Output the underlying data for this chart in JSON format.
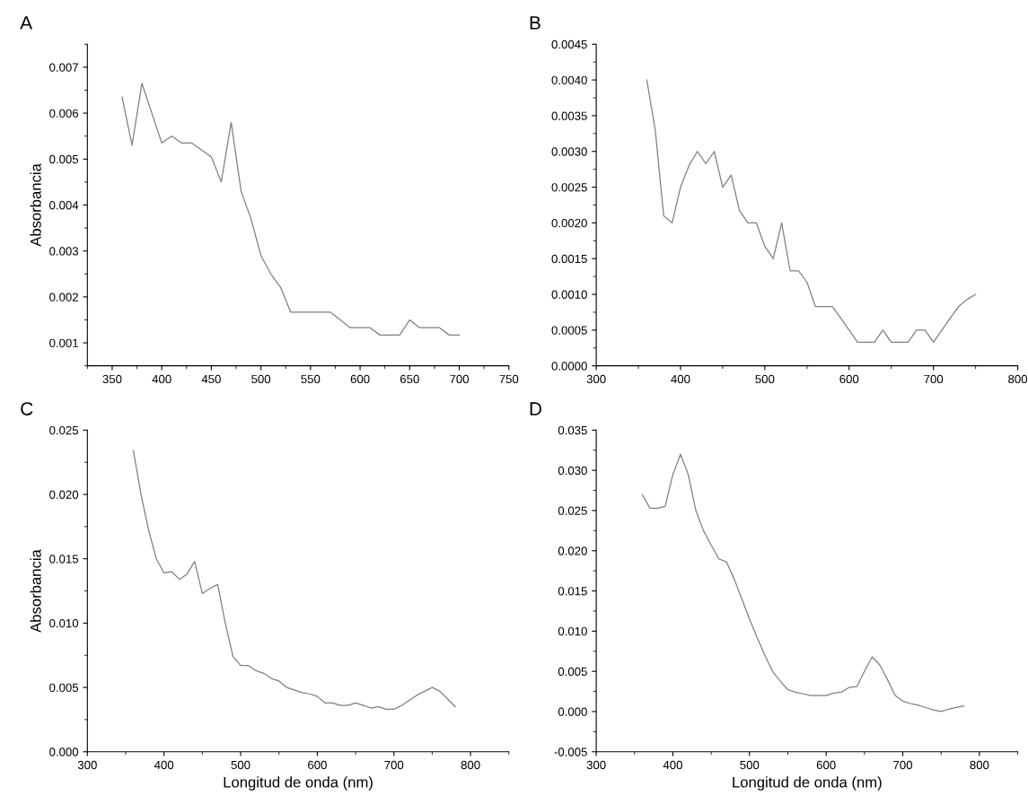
{
  "chart_data": [
    {
      "type": "line",
      "title": "A",
      "ylabel": "Absorbancia",
      "color": "#7f7f7f",
      "line_style": "solid",
      "marker": "none",
      "grid": false,
      "legend": false,
      "x": [
        360,
        370,
        380,
        390,
        400,
        410,
        420,
        430,
        440,
        450,
        460,
        470,
        480,
        490,
        500,
        510,
        520,
        530,
        540,
        550,
        560,
        570,
        580,
        590,
        600,
        610,
        620,
        630,
        640,
        650,
        660,
        670,
        680,
        690,
        700
      ],
      "values": [
        0.00635,
        0.0053,
        0.00665,
        0.006,
        0.00535,
        0.0055,
        0.00535,
        0.00535,
        0.0052,
        0.00505,
        0.0045,
        0.0058,
        0.0043,
        0.0037,
        0.0029,
        0.0025,
        0.0022,
        0.00167,
        0.00167,
        0.00167,
        0.00167,
        0.00167,
        0.0015,
        0.00133,
        0.00133,
        0.00133,
        0.00117,
        0.00117,
        0.00117,
        0.0015,
        0.00133,
        0.00133,
        0.00133,
        0.00117,
        0.00117
      ],
      "xlim": [
        325,
        750
      ],
      "xticks": [
        350,
        400,
        450,
        500,
        550,
        600,
        650,
        700,
        750
      ],
      "ylim": [
        0.0005,
        0.0075
      ],
      "yticks": [
        0.001,
        0.002,
        0.003,
        0.004,
        0.005,
        0.006,
        0.007
      ]
    },
    {
      "type": "line",
      "title": "B",
      "color": "#7f7f7f",
      "line_style": "solid",
      "marker": "none",
      "grid": false,
      "legend": false,
      "x": [
        360,
        370,
        380,
        390,
        400,
        410,
        420,
        430,
        440,
        450,
        460,
        470,
        480,
        490,
        500,
        510,
        520,
        530,
        540,
        550,
        560,
        570,
        580,
        590,
        600,
        610,
        620,
        630,
        640,
        650,
        660,
        670,
        680,
        690,
        700,
        710,
        720,
        730,
        740,
        750
      ],
      "values": [
        0.004,
        0.0033,
        0.0021,
        0.002,
        0.0025,
        0.0028,
        0.003,
        0.00283,
        0.003,
        0.0025,
        0.00267,
        0.00217,
        0.002,
        0.002,
        0.00167,
        0.0015,
        0.002,
        0.00133,
        0.00133,
        0.00117,
        0.00083,
        0.00083,
        0.00083,
        0.00067,
        0.0005,
        0.00033,
        0.00033,
        0.00033,
        0.0005,
        0.00033,
        0.00033,
        0.00033,
        0.0005,
        0.0005,
        0.00033,
        0.0005,
        0.00067,
        0.00083,
        0.00093,
        0.001
      ],
      "xlim": [
        300,
        800
      ],
      "xticks": [
        300,
        400,
        500,
        600,
        700,
        800
      ],
      "ylim": [
        0.0,
        0.0045
      ],
      "yticks": [
        {
          "value": 0.0,
          "label": "0.0000"
        },
        {
          "value": 0.0005,
          "label": "0.0005"
        },
        {
          "value": 0.001,
          "label": "0.0010"
        },
        {
          "value": 0.0015,
          "label": "0.0015"
        },
        {
          "value": 0.002,
          "label": "0.0020"
        },
        {
          "value": 0.0025,
          "label": "0.0025"
        },
        {
          "value": 0.003,
          "label": "0.0030"
        },
        {
          "value": 0.0035,
          "label": "0.0035"
        },
        {
          "value": 0.004,
          "label": "0.0040"
        },
        {
          "value": 0.0045,
          "label": "0.0045"
        }
      ]
    },
    {
      "type": "line",
      "title": "C",
      "xlabel": "Longitud de onda (nm)",
      "ylabel": "Absorbancia",
      "color": "#7f7f7f",
      "line_style": "solid",
      "marker": "none",
      "grid": false,
      "legend": false,
      "x": [
        360,
        370,
        380,
        390,
        400,
        410,
        420,
        430,
        440,
        450,
        460,
        470,
        480,
        490,
        500,
        510,
        520,
        530,
        540,
        550,
        560,
        570,
        580,
        590,
        600,
        610,
        620,
        630,
        640,
        650,
        660,
        670,
        680,
        690,
        700,
        710,
        720,
        730,
        740,
        750,
        760,
        770,
        780
      ],
      "values": [
        0.0234,
        0.02,
        0.0172,
        0.015,
        0.0139,
        0.014,
        0.0134,
        0.0138,
        0.0148,
        0.0123,
        0.0127,
        0.013,
        0.01,
        0.0074,
        0.0067,
        0.0067,
        0.0063,
        0.0061,
        0.0057,
        0.0055,
        0.005,
        0.0048,
        0.0046,
        0.0045,
        0.0043,
        0.0038,
        0.0038,
        0.0036,
        0.0036,
        0.0038,
        0.0036,
        0.0034,
        0.0035,
        0.0033,
        0.0033,
        0.0036,
        0.004,
        0.0044,
        0.0047,
        0.005,
        0.0047,
        0.0041,
        0.0035
      ],
      "xlim": [
        300,
        850
      ],
      "xticks": [
        300,
        400,
        500,
        600,
        700,
        800
      ],
      "ylim": [
        0.0,
        0.025
      ],
      "yticks": [
        {
          "value": 0.0,
          "label": "0.000"
        },
        {
          "value": 0.005,
          "label": "0.005"
        },
        {
          "value": 0.01,
          "label": "0.010"
        },
        {
          "value": 0.015,
          "label": "0.015"
        },
        {
          "value": 0.02,
          "label": "0.020"
        },
        {
          "value": 0.025,
          "label": "0.025"
        }
      ]
    },
    {
      "type": "line",
      "title": "D",
      "xlabel": "Longitud de onda (nm)",
      "color": "#7f7f7f",
      "line_style": "solid",
      "marker": "none",
      "grid": false,
      "legend": false,
      "x": [
        360,
        370,
        380,
        390,
        400,
        410,
        420,
        430,
        440,
        450,
        460,
        470,
        480,
        490,
        500,
        510,
        520,
        530,
        540,
        550,
        560,
        570,
        580,
        590,
        600,
        610,
        620,
        630,
        640,
        650,
        660,
        670,
        680,
        690,
        700,
        710,
        720,
        730,
        740,
        750,
        760,
        770,
        780
      ],
      "values": [
        0.027,
        0.0253,
        0.0253,
        0.0255,
        0.0295,
        0.032,
        0.0295,
        0.025,
        0.0225,
        0.0207,
        0.019,
        0.0186,
        0.0165,
        0.014,
        0.0115,
        0.0092,
        0.007,
        0.005,
        0.0038,
        0.0027,
        0.0024,
        0.0022,
        0.002,
        0.002,
        0.002,
        0.0023,
        0.0024,
        0.003,
        0.0031,
        0.005,
        0.0068,
        0.0058,
        0.004,
        0.002,
        0.0013,
        0.001,
        0.0008,
        0.0005,
        0.0002,
        0.0,
        0.0003,
        0.0005,
        0.0007
      ],
      "xlim": [
        300,
        850
      ],
      "xticks": [
        300,
        400,
        500,
        600,
        700,
        800
      ],
      "ylim": [
        -0.005,
        0.035
      ],
      "yticks": [
        {
          "value": -0.005,
          "label": "-0.005"
        },
        {
          "value": 0.0,
          "label": "0.000"
        },
        {
          "value": 0.005,
          "label": "0.005"
        },
        {
          "value": 0.01,
          "label": "0.010"
        },
        {
          "value": 0.015,
          "label": "0.015"
        },
        {
          "value": 0.02,
          "label": "0.020"
        },
        {
          "value": 0.025,
          "label": "0.025"
        },
        {
          "value": 0.03,
          "label": "0.030"
        },
        {
          "value": 0.035,
          "label": "0.035"
        }
      ]
    }
  ]
}
